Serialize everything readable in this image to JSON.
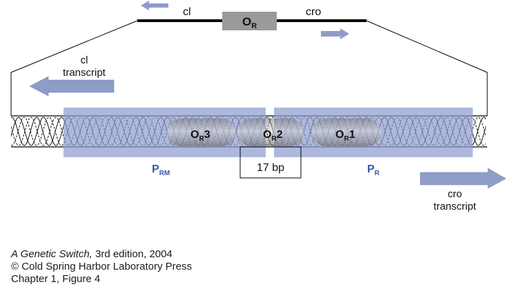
{
  "map": {
    "cl_label": "cl",
    "cro_label": "cro",
    "operator_main": "O",
    "operator_sub": "R"
  },
  "transcripts": {
    "cl_line1": "cl",
    "cl_line2": "transcript",
    "cro_line1": "cro",
    "cro_line2": "transcript"
  },
  "sites": {
    "or3_main": "O",
    "or3_sub": "R",
    "or3_num": "3",
    "or2_main": "O",
    "or2_sub": "R",
    "or2_num": "2",
    "or1_main": "O",
    "or1_sub": "R",
    "or1_num": "1"
  },
  "spacing": {
    "label": "17 bp"
  },
  "promoters": {
    "prm_main": "P",
    "prm_sub": "RM",
    "pr_main": "P",
    "pr_sub": "R"
  },
  "caption": {
    "line1_italic": "A Genetic Switch,",
    "line1_rest": " 3rd edition, 2004",
    "line2": "© Cold Spring Harbor Laboratory Press",
    "line3": "Chapter 1, Figure 4"
  },
  "colors": {
    "arrow_fill": "#8e9cc8",
    "promoter_box": "#8f9dd0",
    "promoter_label": "#3b57a6",
    "operator_box": "#9a9a9a"
  }
}
